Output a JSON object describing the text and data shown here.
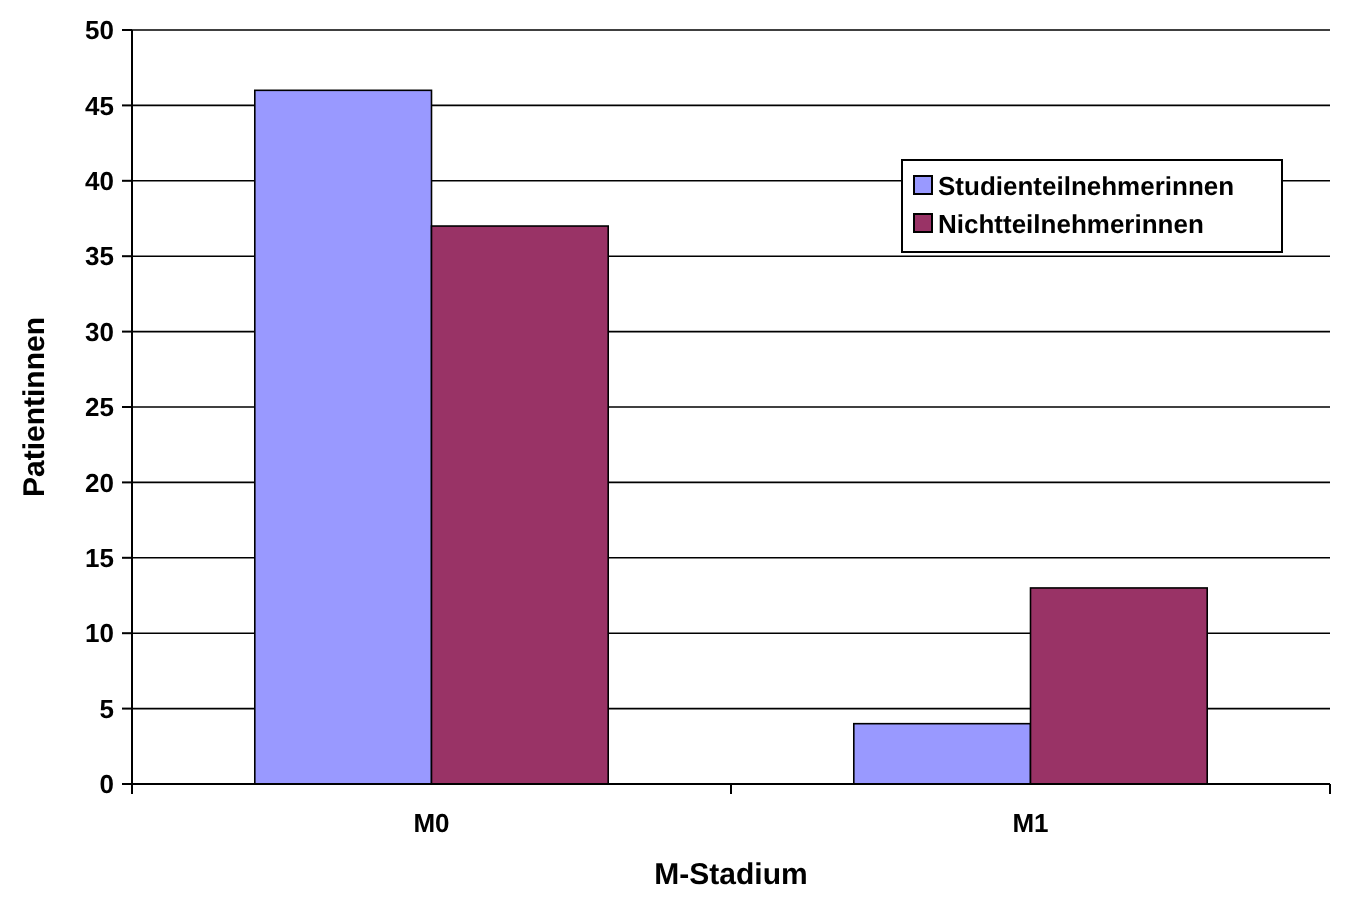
{
  "chart_data": {
    "type": "bar",
    "xlabel": "M-Stadium",
    "ylabel": "Patientinnen",
    "categories": [
      "M0",
      "M1"
    ],
    "series": [
      {
        "name": "Studienteilnehmerinnen",
        "color": "#9999ff",
        "values": [
          46,
          4
        ]
      },
      {
        "name": "Nichtteilnehmerinnen",
        "color": "#993366",
        "values": [
          37,
          13
        ]
      }
    ],
    "ylim": [
      0,
      50
    ],
    "yticks": [
      0,
      5,
      10,
      15,
      20,
      25,
      30,
      35,
      40,
      45,
      50
    ],
    "grid": "y",
    "legend": "top right"
  }
}
